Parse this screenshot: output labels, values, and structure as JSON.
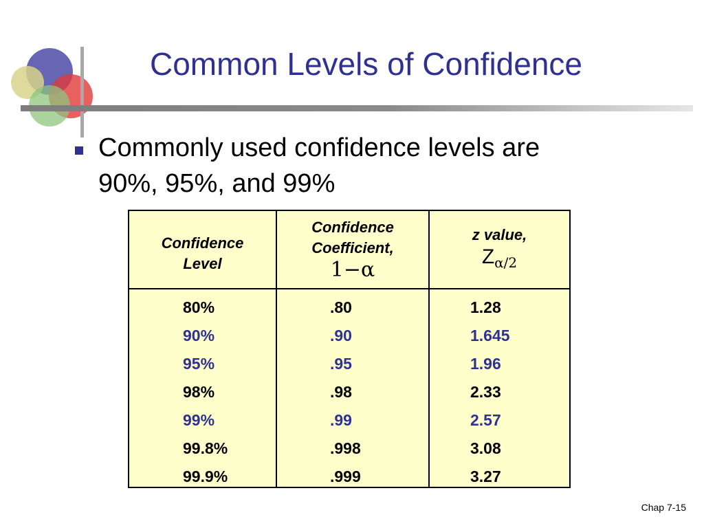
{
  "title": "Common Levels of Confidence",
  "bullet": {
    "line1": "Commonly used confidence levels are",
    "line2": "90%, 95%, and 99%"
  },
  "table": {
    "headers": {
      "col1_line1": "Confidence",
      "col1_line2": "Level",
      "col2_line1": "Confidence",
      "col2_line2": "Coefficient,",
      "col2_math": "1−α",
      "col3_line1": "z value,",
      "col3_math_main": "Z",
      "col3_math_sub": "α/2"
    },
    "rows": [
      {
        "level": "80%",
        "coef": ".80",
        "z": "1.28",
        "highlight": false
      },
      {
        "level": "90%",
        "coef": ".90",
        "z": "1.645",
        "highlight": true
      },
      {
        "level": "95%",
        "coef": ".95",
        "z": "1.96",
        "highlight": true
      },
      {
        "level": "98%",
        "coef": ".98",
        "z": "2.33",
        "highlight": false
      },
      {
        "level": "99%",
        "coef": ".99",
        "z": "2.57",
        "highlight": true
      },
      {
        "level": "99.8%",
        "coef": ".998",
        "z": "3.08",
        "highlight": false
      },
      {
        "level": "99.9%",
        "coef": ".999",
        "z": "3.27",
        "highlight": false
      }
    ]
  },
  "footer": "Chap 7-15",
  "colors": {
    "title": "#2e3192",
    "highlight": "#2e3192",
    "table_bg": "#ffffcc"
  }
}
